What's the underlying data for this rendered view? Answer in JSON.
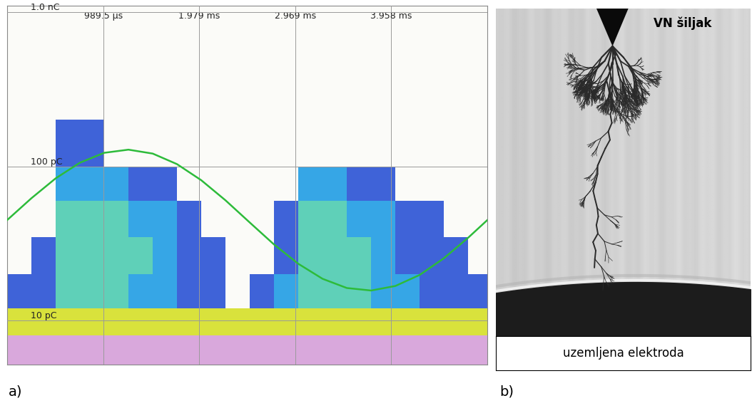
{
  "chart_data": {
    "type": "heatmap",
    "panel_label": "a)",
    "x_edges": [
      0,
      0.25,
      0.5,
      0.75,
      1.0,
      1.25,
      1.5,
      1.75,
      2.0,
      2.25,
      2.5,
      2.75,
      3.0,
      3.25,
      3.5,
      3.75,
      4.0,
      4.25,
      4.5,
      4.75,
      5.0
    ],
    "y_edges": [
      5.2,
      8,
      12,
      20,
      35,
      60,
      100,
      200,
      1100
    ],
    "cells": [
      [
        5,
        5,
        5,
        5,
        5,
        5,
        5,
        5,
        5,
        5,
        5,
        5,
        5,
        5,
        5,
        5,
        5,
        5,
        5,
        5
      ],
      [
        4,
        4,
        4,
        4,
        4,
        4,
        4,
        4,
        4,
        4,
        4,
        4,
        4,
        4,
        4,
        4,
        4,
        4,
        4,
        4
      ],
      [
        1,
        1,
        3,
        3,
        3,
        2,
        2,
        1,
        1,
        0,
        1,
        2,
        3,
        3,
        3,
        2,
        2,
        1,
        1,
        1
      ],
      [
        0,
        1,
        3,
        3,
        3,
        3,
        2,
        1,
        1,
        0,
        0,
        1,
        3,
        3,
        3,
        2,
        1,
        1,
        1,
        0
      ],
      [
        0,
        0,
        3,
        3,
        3,
        2,
        2,
        1,
        0,
        0,
        0,
        1,
        3,
        3,
        2,
        2,
        1,
        1,
        0,
        0
      ],
      [
        0,
        0,
        2,
        2,
        2,
        1,
        1,
        0,
        0,
        0,
        0,
        0,
        2,
        2,
        1,
        1,
        0,
        0,
        0,
        0
      ],
      [
        0,
        0,
        1,
        1,
        0,
        0,
        0,
        0,
        0,
        0,
        0,
        0,
        0,
        0,
        0,
        0,
        0,
        0,
        0,
        0
      ],
      [
        0,
        0,
        0,
        0,
        0,
        0,
        0,
        0,
        0,
        0,
        0,
        0,
        0,
        0,
        0,
        0,
        0,
        0,
        0,
        0
      ]
    ],
    "xlim": [
      0,
      4.9475
    ],
    "ylim": [
      5.2,
      1100
    ],
    "xticks": [
      {
        "value": 0.9895,
        "label": "989.5 µs"
      },
      {
        "value": 1.979,
        "label": "1.979 ms"
      },
      {
        "value": 2.969,
        "label": "2.969 ms"
      },
      {
        "value": 3.958,
        "label": "3.958 ms"
      }
    ],
    "yticks": [
      {
        "value": 10,
        "label": "10 pC"
      },
      {
        "value": 100,
        "label": "100 pC"
      },
      {
        "value": 1000,
        "label": "1.0 nC"
      }
    ],
    "log": "y",
    "grid": true,
    "series": [
      {
        "type": "line",
        "color": "#2dbb3a",
        "x": [
          0,
          0.25,
          0.5,
          0.75,
          1.0,
          1.25,
          1.5,
          1.75,
          2.0,
          2.25,
          2.5,
          2.75,
          3.0,
          3.25,
          3.5,
          3.75,
          4.0,
          4.25,
          4.5,
          4.75,
          4.9475
        ],
        "values": [
          44.9,
          62.2,
          83.7,
          105.7,
          122.5,
          128.4,
          121.1,
          103.5,
          81.4,
          60.3,
          43.3,
          31.2,
          23.4,
          18.7,
          16.3,
          15.7,
          16.8,
          19.8,
          25.4,
          34.5,
          44.9
        ]
      }
    ]
  },
  "photo": {
    "panel_label": "b)",
    "tip_label": "VN šiljak",
    "electrode_label": "uzemljena elektroda"
  }
}
